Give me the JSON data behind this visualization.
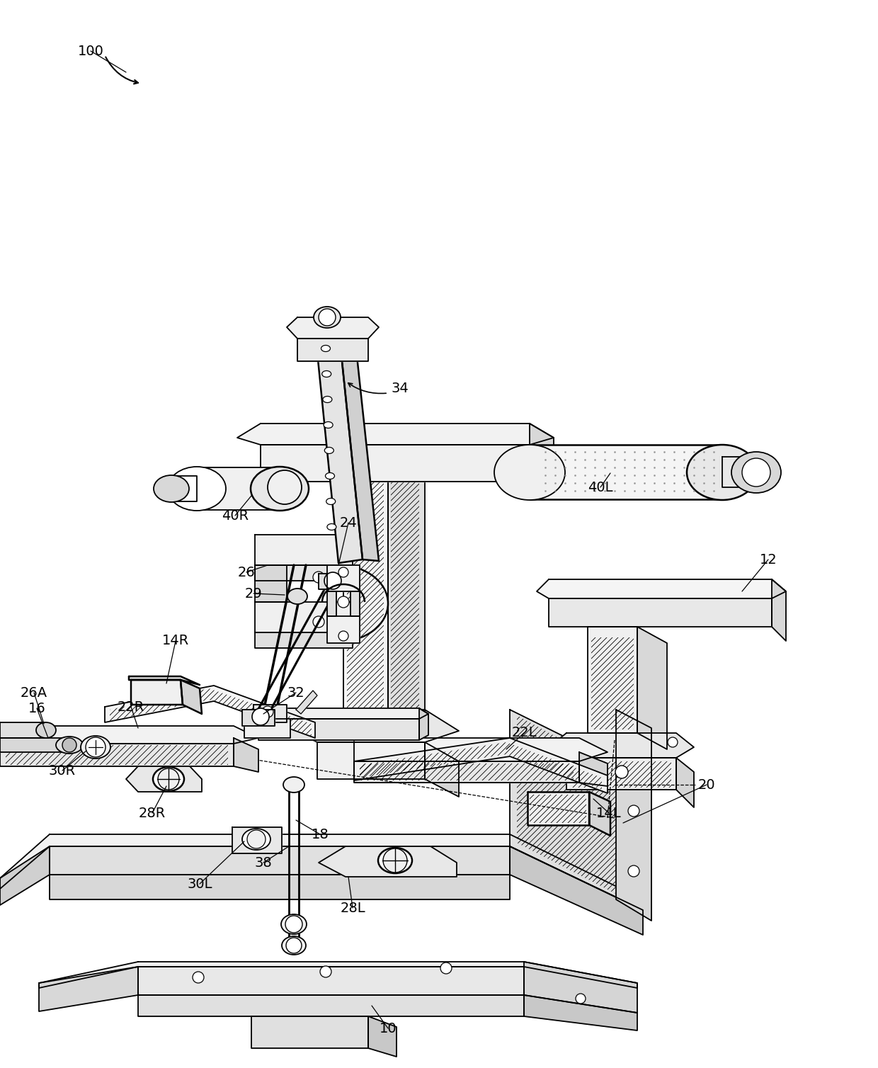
{
  "bg_color": "#ffffff",
  "lc": "#000000",
  "figsize": [
    12.4,
    15.08
  ],
  "dpi": 100,
  "labels": [
    [
      "100",
      128,
      72
    ],
    [
      "10",
      548,
      1452
    ],
    [
      "12",
      1085,
      790
    ],
    [
      "14L",
      860,
      1148
    ],
    [
      "14R",
      248,
      905
    ],
    [
      "16",
      52,
      1000
    ],
    [
      "18",
      452,
      1178
    ],
    [
      "20",
      998,
      1108
    ],
    [
      "22L",
      740,
      1035
    ],
    [
      "22R",
      185,
      998
    ],
    [
      "24",
      492,
      738
    ],
    [
      "26",
      348,
      808
    ],
    [
      "26A",
      48,
      978
    ],
    [
      "28L",
      498,
      1282
    ],
    [
      "28R",
      215,
      1148
    ],
    [
      "29",
      358,
      838
    ],
    [
      "30L",
      282,
      1248
    ],
    [
      "30R",
      88,
      1088
    ],
    [
      "32",
      418,
      978
    ],
    [
      "34",
      565,
      548
    ],
    [
      "38",
      372,
      1218
    ],
    [
      "40L",
      848,
      688
    ],
    [
      "40R",
      332,
      728
    ]
  ]
}
